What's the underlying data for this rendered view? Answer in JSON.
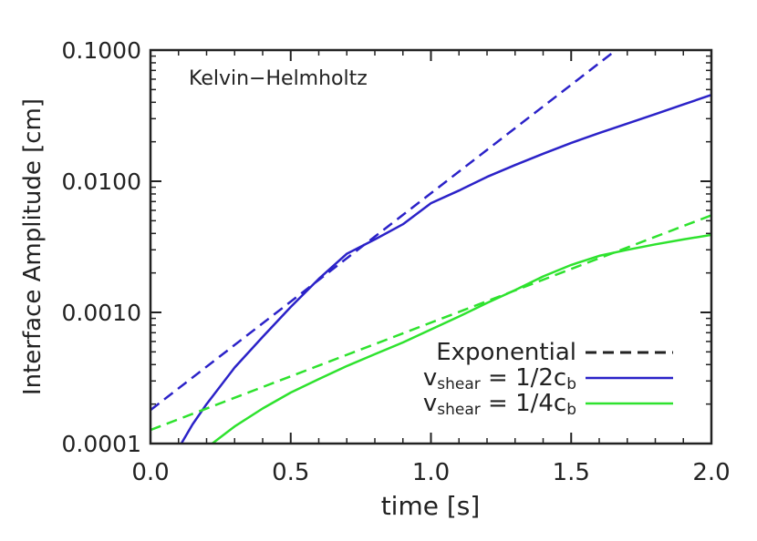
{
  "colors": {
    "blue": "#2b22c8",
    "green": "#2ee22e",
    "axis": "#222222"
  },
  "chart_data": {
    "type": "line",
    "annotation": "Kelvin−Helmholtz",
    "xlabel": "time [s]",
    "ylabel": "Interface Amplitude [cm]",
    "xlim": [
      0.0,
      2.0
    ],
    "ylim": [
      0.0001,
      0.1
    ],
    "yscale": "log",
    "xticks": [
      0.0,
      0.5,
      1.0,
      1.5,
      2.0
    ],
    "xtick_labels": [
      "0.0",
      "0.5",
      "1.0",
      "1.5",
      "2.0"
    ],
    "yticks": [
      0.0001,
      0.001,
      0.01,
      0.1
    ],
    "ytick_labels": [
      "0.0001",
      "0.0010",
      "0.0100",
      "0.1000"
    ],
    "legend": {
      "position": "bottom-right",
      "entries": [
        {
          "label": "Exponential",
          "style": "dashed",
          "color": "#222222"
        },
        {
          "label_main": "v",
          "label_sub": "shear",
          "label_rest": " = 1/2c",
          "label_rest_sub": "b",
          "style": "solid",
          "color": "#2b22c8"
        },
        {
          "label_main": "v",
          "label_sub": "shear",
          "label_rest": " = 1/4c",
          "label_rest_sub": "b",
          "style": "solid",
          "color": "#2ee22e"
        }
      ]
    },
    "series": [
      {
        "name": "v_shear = 1/2 c_b",
        "style": "solid",
        "color": "#2b22c8",
        "x": [
          0.11,
          0.15,
          0.2,
          0.3,
          0.4,
          0.5,
          0.6,
          0.7,
          0.8,
          0.9,
          1.0,
          1.1,
          1.2,
          1.3,
          1.4,
          1.5,
          1.6,
          1.7,
          1.8,
          1.9,
          2.0
        ],
        "y": [
          0.0001,
          0.00014,
          0.0002,
          0.00038,
          0.00065,
          0.0011,
          0.0018,
          0.0028,
          0.0036,
          0.0047,
          0.0068,
          0.0085,
          0.0108,
          0.0133,
          0.0162,
          0.0196,
          0.0233,
          0.0275,
          0.0325,
          0.0385,
          0.0455
        ]
      },
      {
        "name": "v_shear = 1/4 c_b",
        "style": "solid",
        "color": "#2ee22e",
        "x": [
          0.22,
          0.3,
          0.4,
          0.5,
          0.6,
          0.7,
          0.8,
          0.9,
          1.0,
          1.1,
          1.2,
          1.3,
          1.4,
          1.5,
          1.6,
          1.7,
          1.8,
          1.9,
          2.0
        ],
        "y": [
          0.0001,
          0.000135,
          0.000185,
          0.000245,
          0.00031,
          0.00039,
          0.00048,
          0.00059,
          0.00074,
          0.00093,
          0.00118,
          0.00148,
          0.00188,
          0.0023,
          0.0027,
          0.003,
          0.0033,
          0.0036,
          0.0039
        ]
      },
      {
        "name": "Exponential fit (1/2 c_b)",
        "style": "dashed",
        "color": "#2b22c8",
        "x": [
          0.0,
          1.66
        ],
        "y": [
          0.00018,
          0.1
        ]
      },
      {
        "name": "Exponential fit (1/4 c_b)",
        "style": "dashed",
        "color": "#2ee22e",
        "x": [
          0.0,
          2.0
        ],
        "y": [
          0.000127,
          0.0055
        ]
      }
    ]
  }
}
